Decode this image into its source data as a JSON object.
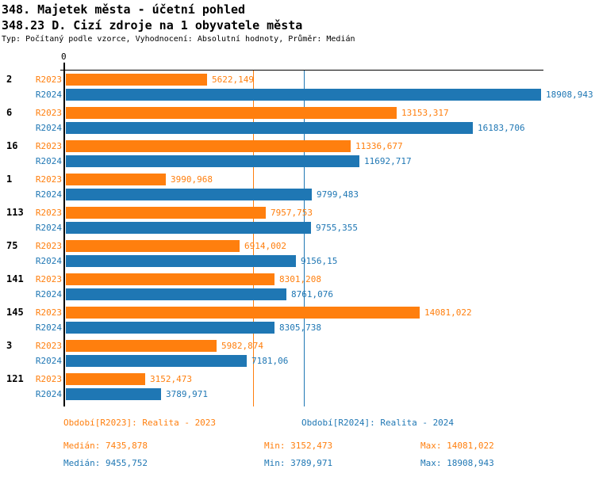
{
  "header": {
    "title_line1": "348. Majetek města - účetní pohled",
    "title_line2": "348.23 D. Cizí zdroje na 1 obyvatele města",
    "subtitle": "Typ: Počítaný podle vzorce, Vyhodnocení: Absolutní hodnoty, Průměr: Medián"
  },
  "colors": {
    "r2023": "#ff7f0e",
    "r2024": "#1f77b4",
    "axis": "#000000",
    "background": "#ffffff"
  },
  "chart_data": {
    "type": "bar",
    "orientation": "horizontal",
    "title": "348.23 D. Cizí zdroje na 1 obyvatele města",
    "x_axis": {
      "zero_label": "0",
      "xlim": [
        0,
        19000
      ],
      "grid": false
    },
    "categories": [
      "2",
      "6",
      "16",
      "1",
      "113",
      "75",
      "141",
      "145",
      "3",
      "121"
    ],
    "series": [
      {
        "name": "R2023",
        "color": "#ff7f0e",
        "values": [
          5622.149,
          13153.317,
          11336.677,
          3990.968,
          7957.753,
          6914.002,
          8301.208,
          14081.022,
          5982.874,
          3152.473
        ],
        "labels": [
          "5622,149",
          "13153,317",
          "11336,677",
          "3990,968",
          "7957,753",
          "6914,002",
          "8301,208",
          "14081,022",
          "5982,874",
          "3152,473"
        ]
      },
      {
        "name": "R2024",
        "color": "#1f77b4",
        "values": [
          18908.943,
          16183.706,
          11692.717,
          9799.483,
          9755.355,
          9156.15,
          8761.076,
          8305.738,
          7181.06,
          3789.971
        ],
        "labels": [
          "18908,943",
          "16183,706",
          "11692,717",
          "9799,483",
          "9755,355",
          "9156,15",
          "8761,076",
          "8305,738",
          "7181,06",
          "3789,971"
        ]
      }
    ],
    "median_lines": [
      {
        "series": "R2023",
        "value": 7435.878,
        "color": "#ff7f0e"
      },
      {
        "series": "R2024",
        "value": 9455.752,
        "color": "#1f77b4"
      }
    ]
  },
  "footer": {
    "legend": [
      {
        "label": "Období[R2023]: Realita - 2023",
        "color": "#ff7f0e"
      },
      {
        "label": "Období[R2024]: Realita - 2024",
        "color": "#1f77b4"
      }
    ],
    "stats_rows": [
      {
        "median_label": "Medián: 7435,878",
        "min_label": "Min: 3152,473",
        "max_label": "Max: 14081,022",
        "color": "#ff7f0e"
      },
      {
        "median_label": "Medián: 9455,752",
        "min_label": "Min: 3789,971",
        "max_label": "Max: 18908,943",
        "color": "#1f77b4"
      }
    ]
  }
}
